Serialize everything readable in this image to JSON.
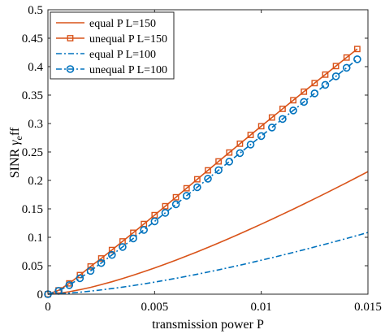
{
  "chart_data": {
    "type": "line",
    "title": "",
    "xlabel": "transmission power  P",
    "ylabel_main": "SINR ",
    "ylabel_symbol": "γ",
    "ylabel_sub": "e",
    "ylabel_tail": "ff",
    "xlim": [
      0,
      0.015
    ],
    "ylim": [
      0,
      0.5
    ],
    "xticks": [
      0,
      0.005,
      0.01,
      0.015
    ],
    "xtick_labels": [
      "0",
      "0.005",
      "0.01",
      "0.015"
    ],
    "yticks": [
      0,
      0.05,
      0.1,
      0.15,
      0.2,
      0.25,
      0.3,
      0.35,
      0.4,
      0.45,
      0.5
    ],
    "ytick_labels": [
      "0",
      "0.05",
      "0.1",
      "0.15",
      "0.2",
      "0.25",
      "0.3",
      "0.35",
      "0.4",
      "0.45",
      "0.5"
    ],
    "grid": false,
    "legend_position": "top-left",
    "series": [
      {
        "name": "equal P L=150",
        "color": "#D95319",
        "style": "solid",
        "marker": "none",
        "x": [
          0,
          0.0005,
          0.001,
          0.0015,
          0.002,
          0.0025,
          0.003,
          0.0035,
          0.004,
          0.0045,
          0.005,
          0.0055,
          0.006,
          0.0065,
          0.007,
          0.0075,
          0.008,
          0.0085,
          0.009,
          0.0095,
          0.01,
          0.0105,
          0.011,
          0.0115,
          0.012,
          0.0125,
          0.013,
          0.0135,
          0.014,
          0.0145,
          0.015
        ],
        "y": [
          0,
          0.0015,
          0.0043,
          0.0079,
          0.012,
          0.0168,
          0.0219,
          0.0275,
          0.0334,
          0.0396,
          0.0461,
          0.0528,
          0.0598,
          0.0671,
          0.0745,
          0.0822,
          0.09,
          0.098,
          0.1062,
          0.1146,
          0.1231,
          0.1318,
          0.1406,
          0.1495,
          0.1586,
          0.1678,
          0.1771,
          0.1865,
          0.196,
          0.2057,
          0.2155
        ]
      },
      {
        "name": "unequal P L=150",
        "color": "#D95319",
        "style": "solid",
        "marker": "square",
        "x": [
          0,
          0.0005,
          0.001,
          0.0015,
          0.002,
          0.0025,
          0.003,
          0.0035,
          0.004,
          0.0045,
          0.005,
          0.0055,
          0.006,
          0.0065,
          0.007,
          0.0075,
          0.008,
          0.0085,
          0.009,
          0.0095,
          0.01,
          0.0105,
          0.011,
          0.0115,
          0.012,
          0.0125,
          0.013,
          0.0135,
          0.014,
          0.0145
        ],
        "y": [
          0,
          0.0068,
          0.019,
          0.0336,
          0.0487,
          0.0629,
          0.0777,
          0.0928,
          0.108,
          0.1234,
          0.139,
          0.1547,
          0.1704,
          0.1862,
          0.202,
          0.2177,
          0.2334,
          0.249,
          0.2645,
          0.2799,
          0.2953,
          0.3106,
          0.3258,
          0.3409,
          0.356,
          0.371,
          0.386,
          0.401,
          0.416,
          0.431
        ]
      },
      {
        "name": "equal P L=100",
        "color": "#0072BD",
        "style": "dashdot",
        "marker": "none",
        "x": [
          0,
          0.0005,
          0.001,
          0.0015,
          0.002,
          0.0025,
          0.003,
          0.0035,
          0.004,
          0.0045,
          0.005,
          0.0055,
          0.006,
          0.0065,
          0.007,
          0.0075,
          0.008,
          0.0085,
          0.009,
          0.0095,
          0.01,
          0.0105,
          0.011,
          0.0115,
          0.012,
          0.0125,
          0.013,
          0.0135,
          0.014,
          0.0145,
          0.015
        ],
        "y": [
          0,
          0.0007,
          0.0019,
          0.0035,
          0.0054,
          0.0075,
          0.0099,
          0.0124,
          0.0152,
          0.0181,
          0.0212,
          0.0245,
          0.0279,
          0.0314,
          0.0351,
          0.0389,
          0.0428,
          0.0469,
          0.051,
          0.0553,
          0.0597,
          0.0641,
          0.0687,
          0.0734,
          0.0781,
          0.083,
          0.0879,
          0.0929,
          0.098,
          0.1032,
          0.1085
        ]
      },
      {
        "name": "unequal P L=100",
        "color": "#0072BD",
        "style": "dashdot",
        "marker": "circle",
        "x": [
          0,
          0.0005,
          0.001,
          0.0015,
          0.002,
          0.0025,
          0.003,
          0.0035,
          0.004,
          0.0045,
          0.005,
          0.0055,
          0.006,
          0.0065,
          0.007,
          0.0075,
          0.008,
          0.0085,
          0.009,
          0.0095,
          0.01,
          0.0105,
          0.011,
          0.0115,
          0.012,
          0.0125,
          0.013,
          0.0135,
          0.014,
          0.0145
        ],
        "y": [
          0,
          0.0058,
          0.016,
          0.028,
          0.041,
          0.0548,
          0.069,
          0.083,
          0.098,
          0.113,
          0.128,
          0.143,
          0.158,
          0.173,
          0.188,
          0.203,
          0.218,
          0.233,
          0.248,
          0.263,
          0.278,
          0.293,
          0.308,
          0.323,
          0.338,
          0.353,
          0.368,
          0.383,
          0.398,
          0.413
        ]
      }
    ]
  }
}
